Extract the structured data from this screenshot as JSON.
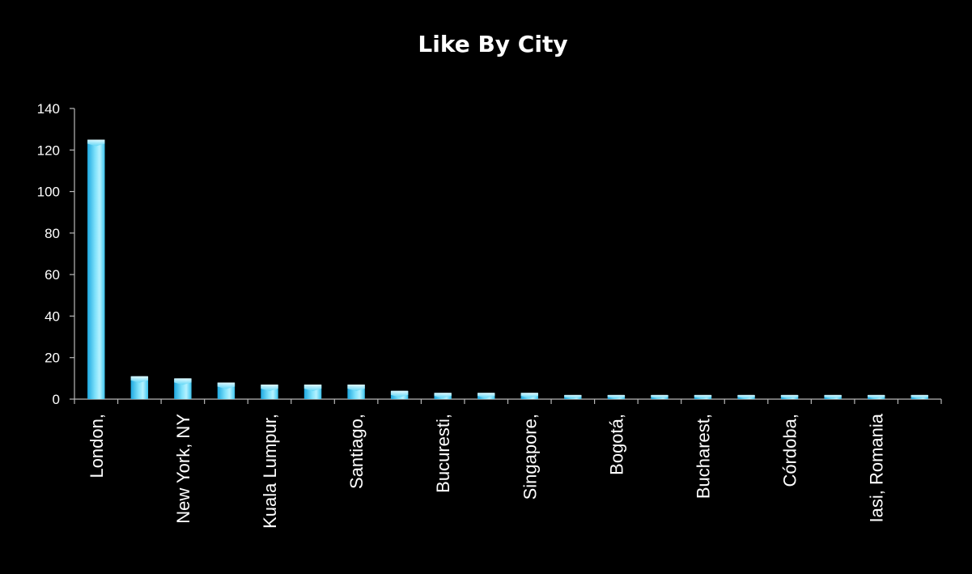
{
  "chart_data": {
    "type": "bar",
    "title": "Like By City",
    "xlabel": "",
    "ylabel": "",
    "ylim": [
      0,
      140
    ],
    "y_ticks": [
      0,
      20,
      40,
      60,
      80,
      100,
      120,
      140
    ],
    "grid": false,
    "legend": "none",
    "categories": [
      "London,",
      "",
      "New York, NY",
      "",
      "Kuala Lumpur,",
      "",
      "Santiago,",
      "",
      "Bucuresti,",
      "",
      "Singapore,",
      "",
      "Bogotá,",
      "",
      "Bucharest,",
      "",
      "Córdoba,",
      "",
      "Iasi, Romania",
      ""
    ],
    "values": [
      125,
      11,
      10,
      8,
      7,
      7,
      7,
      4,
      3,
      3,
      3,
      2,
      2,
      2,
      2,
      2,
      2,
      2,
      2,
      2
    ],
    "colors": {
      "background": "#000000",
      "bar_light": "#a6eeff",
      "bar_mid": "#4fd0f5",
      "bar_dark": "#1ea8e0",
      "axis": "#b8b8b8",
      "text": "#ffffff"
    }
  }
}
